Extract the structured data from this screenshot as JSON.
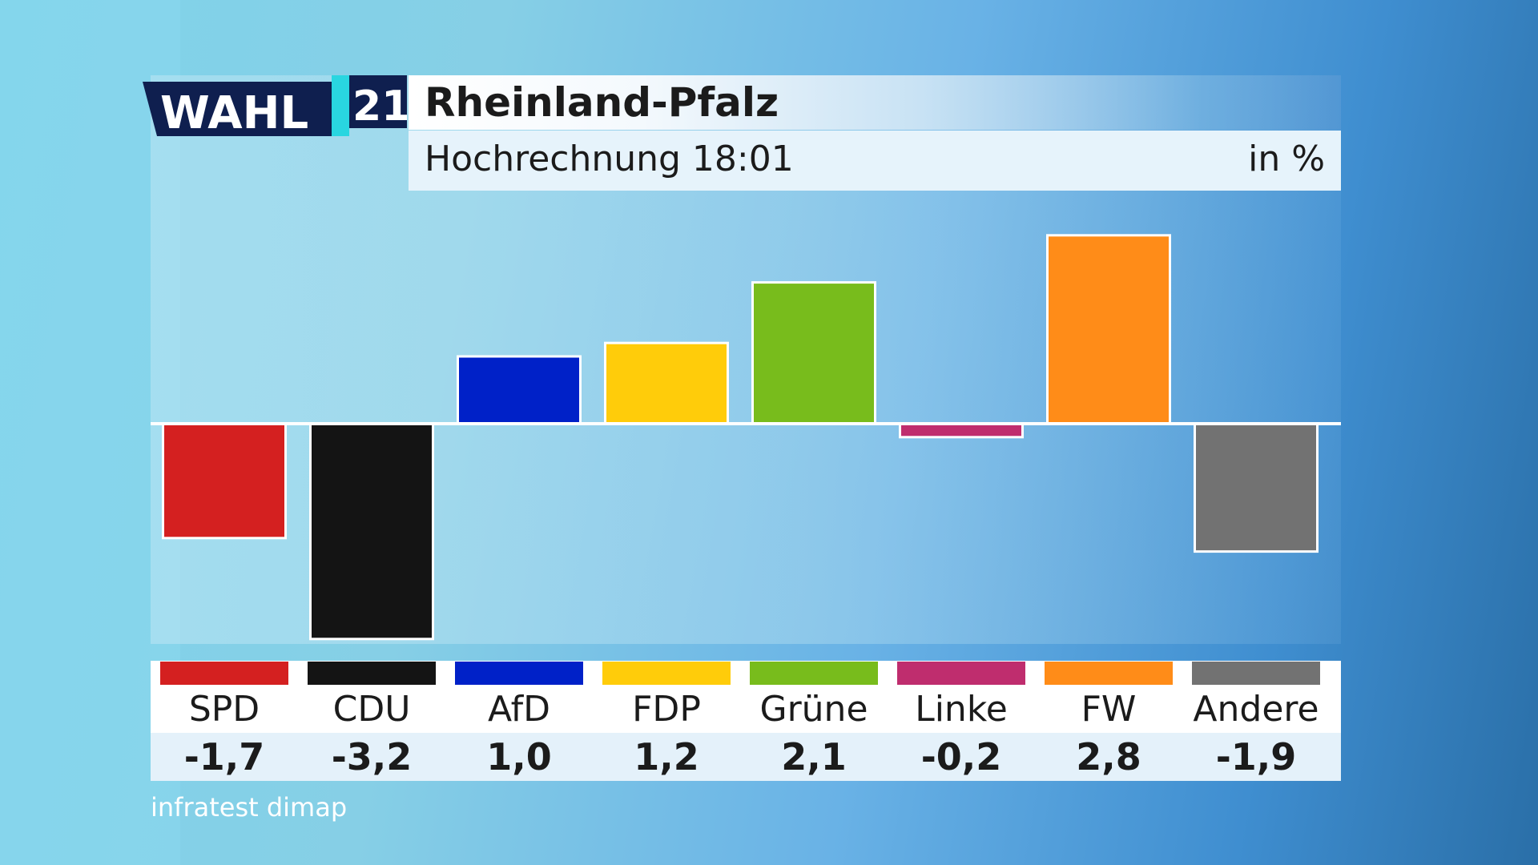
{
  "header": {
    "logo_word": "WAHL",
    "logo_year": "21",
    "title": "Rheinland-Pfalz",
    "subtitle": "Hochrechnung 18:01",
    "unit": "in %"
  },
  "legend": {
    "parties": [
      {
        "name": "SPD",
        "value": "-1,7",
        "color": "#d42020"
      },
      {
        "name": "CDU",
        "value": "-3,2",
        "color": "#141414"
      },
      {
        "name": "AfD",
        "value": "1,0",
        "color": "#0021c8"
      },
      {
        "name": "FDP",
        "value": "1,2",
        "color": "#ffcc0a"
      },
      {
        "name": "Grüne",
        "value": "2,1",
        "color": "#78bc1c"
      },
      {
        "name": "Linke",
        "value": "-0,2",
        "color": "#bf2d6e"
      },
      {
        "name": "FW",
        "value": "2,8",
        "color": "#ff8c18"
      },
      {
        "name": "Andere",
        "value": "-1,9",
        "color": "#727272"
      }
    ]
  },
  "source": "infratest dimap",
  "chart_data": {
    "type": "bar",
    "title": "Rheinland-Pfalz",
    "subtitle": "Hochrechnung 18:01",
    "ylabel": "in %",
    "categories": [
      "SPD",
      "CDU",
      "AfD",
      "FDP",
      "Grüne",
      "Linke",
      "FW",
      "Andere"
    ],
    "values": [
      -1.7,
      -3.2,
      1.0,
      1.2,
      2.1,
      -0.2,
      2.8,
      -1.9
    ],
    "colors": [
      "#d42020",
      "#141414",
      "#0021c8",
      "#ffcc0a",
      "#78bc1c",
      "#bf2d6e",
      "#ff8c18",
      "#727272"
    ],
    "ylim": [
      -3.4,
      3.0
    ],
    "grid": false
  }
}
